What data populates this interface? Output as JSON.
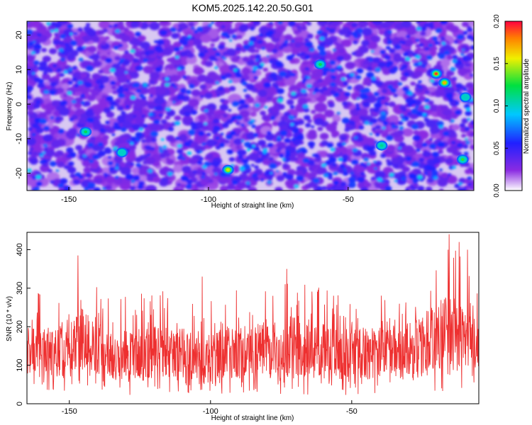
{
  "title": "KOM5.2025.142.20.50.G01",
  "chart_data": [
    {
      "type": "heatmap",
      "xlabel": "Height of straight line (km)",
      "ylabel": "Frequency (Hz)",
      "xlim": [
        -165,
        -5
      ],
      "ylim": [
        -25,
        24
      ],
      "xticks": [
        -150,
        -100,
        -50
      ],
      "yticks": [
        -20,
        -10,
        0,
        10,
        20
      ],
      "colorbar": {
        "label": "Normalized spectral amplitude",
        "range": [
          0.0,
          0.2
        ],
        "ticks": [
          "0.00",
          "0.05",
          "0.10",
          "0.15",
          "0.20"
        ]
      },
      "hotspots": [
        {
          "x": -18.5,
          "y": 8.8,
          "value": 0.19
        },
        {
          "x": -15.5,
          "y": 6.2,
          "value": 0.17
        },
        {
          "x": -93,
          "y": -19,
          "value": 0.15
        },
        {
          "x": -9,
          "y": -16,
          "value": 0.13
        },
        {
          "x": -60,
          "y": 11.5,
          "value": 0.12
        },
        {
          "x": -144,
          "y": -8,
          "value": 0.12
        },
        {
          "x": -38,
          "y": -12,
          "value": 0.11
        },
        {
          "x": -131,
          "y": -14,
          "value": 0.1
        },
        {
          "x": -8,
          "y": 2,
          "value": 0.1
        }
      ]
    },
    {
      "type": "line",
      "xlabel": "Height of straight line (km)",
      "ylabel": "SNR (10 * v/v)",
      "xlim": [
        -165,
        -5
      ],
      "ylim": [
        0,
        445
      ],
      "xticks": [
        -150,
        -100,
        -50
      ],
      "yticks": [
        0,
        100,
        200,
        300,
        400
      ],
      "color": "#ee3030",
      "envelope": [
        {
          "x": -165,
          "min": 35,
          "max": 290
        },
        {
          "x": -150,
          "min": 30,
          "max": 300
        },
        {
          "x": -147,
          "min": 40,
          "max": 385
        },
        {
          "x": -135,
          "min": 25,
          "max": 280
        },
        {
          "x": -120,
          "min": 20,
          "max": 300
        },
        {
          "x": -100,
          "min": 25,
          "max": 280
        },
        {
          "x": -80,
          "min": 20,
          "max": 320
        },
        {
          "x": -60,
          "min": 20,
          "max": 310
        },
        {
          "x": -40,
          "min": 25,
          "max": 290
        },
        {
          "x": -25,
          "min": 30,
          "max": 330
        },
        {
          "x": -15,
          "min": 30,
          "max": 440
        },
        {
          "x": -5,
          "min": 40,
          "max": 300
        }
      ],
      "peaks": [
        {
          "x": -147,
          "y": 385
        },
        {
          "x": -103,
          "y": 330
        },
        {
          "x": -73,
          "y": 350
        },
        {
          "x": -15.5,
          "y": 440
        },
        {
          "x": -12,
          "y": 420
        },
        {
          "x": -9,
          "y": 400
        }
      ]
    }
  ]
}
